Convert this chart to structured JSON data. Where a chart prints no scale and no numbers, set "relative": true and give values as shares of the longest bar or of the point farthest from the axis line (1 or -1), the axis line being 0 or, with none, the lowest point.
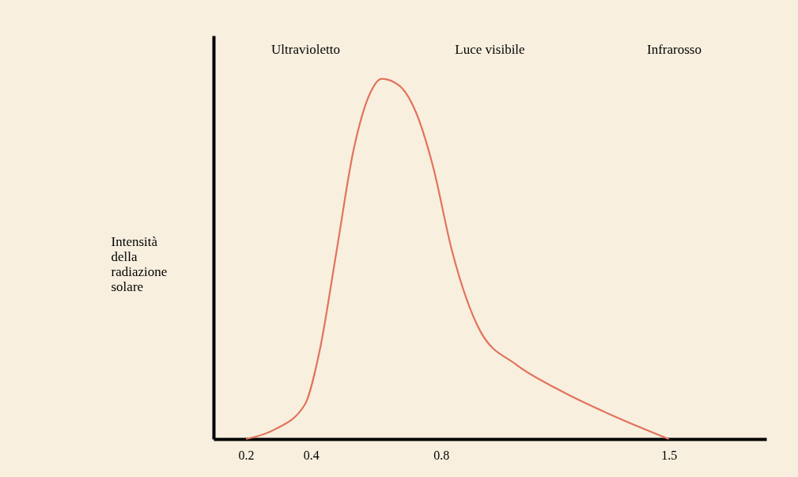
{
  "chart_data": {
    "type": "line",
    "relative": true,
    "ylabel": "Intensità della radiazione solare",
    "x": [
      0.2,
      0.287,
      0.381,
      0.426,
      0.478,
      0.53,
      0.583,
      0.617,
      0.67,
      0.722,
      0.774,
      0.834,
      0.92,
      1.03,
      1.17,
      1.32,
      1.5
    ],
    "series": [
      {
        "color": "#e2735c",
        "values": [
          0,
          0.026,
          0.096,
          0.244,
          0.52,
          0.8,
          0.963,
          1,
          0.982,
          0.908,
          0.76,
          0.52,
          0.3,
          0.207,
          0.133,
          0.068,
          0
        ]
      }
    ],
    "xlim": [
      0.1,
      1.8
    ],
    "xticks": [
      0.2,
      0.4,
      0.8,
      1.5
    ],
    "grid": false,
    "marker": "none",
    "line_style": "solid",
    "annotations": [
      "Ultravioletto",
      "Luce visibile",
      "Infrarosso"
    ]
  }
}
